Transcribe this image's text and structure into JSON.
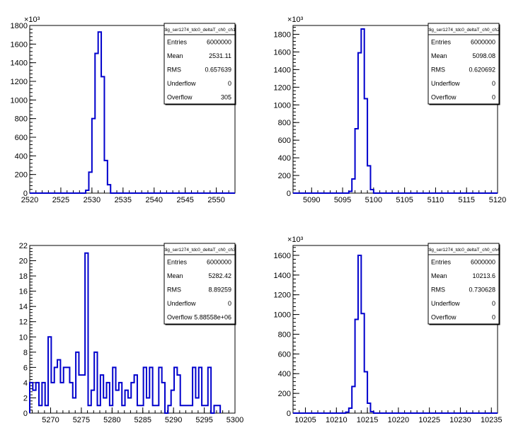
{
  "chart_data": [
    {
      "type": "histogram",
      "stats_title": "dig_ser1274_tdc0_deltaT_ch0_ch1",
      "stats": [
        {
          "label": "Entries",
          "value": "6000000"
        },
        {
          "label": "Mean",
          "value": "2531.11"
        },
        {
          "label": "RMS",
          "value": "0.657639"
        },
        {
          "label": "Underflow",
          "value": "0"
        },
        {
          "label": "Overflow",
          "value": "305"
        }
      ],
      "xlim": [
        2520,
        2553
      ],
      "ylim": [
        0,
        1800
      ],
      "y_multiplier": "×10³",
      "x_ticks": [
        {
          "v": 2520,
          "label": "2520"
        },
        {
          "v": 2525,
          "label": "2525"
        },
        {
          "v": 2530,
          "label": "2530"
        },
        {
          "v": 2535,
          "label": "2535"
        },
        {
          "v": 2540,
          "label": "2540"
        },
        {
          "v": 2545,
          "label": "2545"
        },
        {
          "v": 2550,
          "label": "2550"
        }
      ],
      "y_ticks": [
        {
          "v": 0,
          "label": "0"
        },
        {
          "v": 200,
          "label": "200"
        },
        {
          "v": 400,
          "label": "400"
        },
        {
          "v": 600,
          "label": "600"
        },
        {
          "v": 800,
          "label": "800"
        },
        {
          "v": 1000,
          "label": "1000"
        },
        {
          "v": 1200,
          "label": "1200"
        },
        {
          "v": 1400,
          "label": "1400"
        },
        {
          "v": 1600,
          "label": "1600"
        },
        {
          "v": 1800,
          "label": "1800"
        }
      ],
      "bin_edges": [
        2528.5,
        2529.0,
        2529.5,
        2530.0,
        2530.5,
        2531.0,
        2531.5,
        2532.0,
        2532.5,
        2533.0
      ],
      "values": [
        0,
        30,
        225,
        800,
        1500,
        1730,
        1250,
        350,
        90
      ]
    },
    {
      "type": "histogram",
      "stats_title": "dig_ser1274_tdc0_deltaT_ch0_ch2",
      "stats": [
        {
          "label": "Entries",
          "value": "6000000"
        },
        {
          "label": "Mean",
          "value": "5098.08"
        },
        {
          "label": "RMS",
          "value": "0.620692"
        },
        {
          "label": "Underflow",
          "value": "0"
        },
        {
          "label": "Overflow",
          "value": "0"
        }
      ],
      "xlim": [
        5087,
        5120
      ],
      "ylim": [
        0,
        1900
      ],
      "y_multiplier": "×10³",
      "x_ticks": [
        {
          "v": 5090,
          "label": "5090"
        },
        {
          "v": 5095,
          "label": "5095"
        },
        {
          "v": 5100,
          "label": "5100"
        },
        {
          "v": 5105,
          "label": "5105"
        },
        {
          "v": 5110,
          "label": "5110"
        },
        {
          "v": 5115,
          "label": "5115"
        },
        {
          "v": 5120,
          "label": "5120"
        }
      ],
      "y_ticks": [
        {
          "v": 0,
          "label": "0"
        },
        {
          "v": 200,
          "label": "200"
        },
        {
          "v": 400,
          "label": "400"
        },
        {
          "v": 600,
          "label": "600"
        },
        {
          "v": 800,
          "label": "800"
        },
        {
          "v": 1000,
          "label": "1000"
        },
        {
          "v": 1200,
          "label": "1200"
        },
        {
          "v": 1400,
          "label": "1400"
        },
        {
          "v": 1600,
          "label": "1600"
        },
        {
          "v": 1800,
          "label": "1800"
        }
      ],
      "bin_edges": [
        5096.0,
        5096.5,
        5097.0,
        5097.5,
        5098.0,
        5098.5,
        5099.0,
        5099.5,
        5100.0
      ],
      "values": [
        20,
        160,
        730,
        1590,
        1860,
        1070,
        310,
        40
      ]
    },
    {
      "type": "histogram",
      "stats_title": "dig_ser1274_tdc0_deltaT_ch0_ch3",
      "stats": [
        {
          "label": "Entries",
          "value": "6000000"
        },
        {
          "label": "Mean",
          "value": "5282.42"
        },
        {
          "label": "RMS",
          "value": "8.89259"
        },
        {
          "label": "Underflow",
          "value": "0"
        },
        {
          "label": "Overflow",
          "value": "5.88558e+06"
        }
      ],
      "xlim": [
        5266.6,
        5300
      ],
      "ylim": [
        0,
        22
      ],
      "y_multiplier": "",
      "x_ticks": [
        {
          "v": 5270,
          "label": "5270"
        },
        {
          "v": 5275,
          "label": "5275"
        },
        {
          "v": 5280,
          "label": "5280"
        },
        {
          "v": 5285,
          "label": "5285"
        },
        {
          "v": 5290,
          "label": "5290"
        },
        {
          "v": 5295,
          "label": "5295"
        },
        {
          "v": 5300,
          "label": "5300"
        }
      ],
      "y_ticks": [
        {
          "v": 0,
          "label": "0"
        },
        {
          "v": 2,
          "label": "2"
        },
        {
          "v": 4,
          "label": "4"
        },
        {
          "v": 6,
          "label": "6"
        },
        {
          "v": 8,
          "label": "8"
        },
        {
          "v": 10,
          "label": "10"
        },
        {
          "v": 12,
          "label": "12"
        },
        {
          "v": 14,
          "label": "14"
        },
        {
          "v": 16,
          "label": "16"
        },
        {
          "v": 18,
          "label": "18"
        },
        {
          "v": 20,
          "label": "20"
        },
        {
          "v": 22,
          "label": "22"
        }
      ],
      "bin_start": 5266.6,
      "bin_width": 0.5,
      "values": [
        4,
        3,
        4,
        1,
        4,
        1,
        10,
        4,
        6,
        7,
        4,
        6,
        6,
        4,
        2,
        8,
        5,
        5,
        21,
        1,
        3,
        8,
        1,
        5,
        2,
        4,
        1,
        6,
        3,
        4,
        1,
        3,
        2,
        4,
        5,
        1,
        1,
        6,
        2,
        6,
        1,
        1,
        6,
        4,
        0,
        1,
        3,
        6,
        5,
        1,
        1,
        1,
        1,
        6,
        2,
        6,
        1,
        1,
        6,
        0,
        1,
        1
      ]
    },
    {
      "type": "histogram",
      "stats_title": "dig_ser1274_tdc0_deltaT_ch0_ch4",
      "stats": [
        {
          "label": "Entries",
          "value": "6000000"
        },
        {
          "label": "Mean",
          "value": "10213.6"
        },
        {
          "label": "RMS",
          "value": "0.730628"
        },
        {
          "label": "Underflow",
          "value": "0"
        },
        {
          "label": "Overflow",
          "value": "0"
        }
      ],
      "xlim": [
        10203,
        10236
      ],
      "ylim": [
        0,
        1700
      ],
      "y_multiplier": "×10³",
      "x_ticks": [
        {
          "v": 10205,
          "label": "10205"
        },
        {
          "v": 10210,
          "label": "10210"
        },
        {
          "v": 10215,
          "label": "10215"
        },
        {
          "v": 10220,
          "label": "10220"
        },
        {
          "v": 10225,
          "label": "10225"
        },
        {
          "v": 10230,
          "label": "10230"
        },
        {
          "v": 10235,
          "label": "10235"
        }
      ],
      "y_ticks": [
        {
          "v": 0,
          "label": "0"
        },
        {
          "v": 200,
          "label": "200"
        },
        {
          "v": 400,
          "label": "400"
        },
        {
          "v": 600,
          "label": "600"
        },
        {
          "v": 800,
          "label": "800"
        },
        {
          "v": 1000,
          "label": "1000"
        },
        {
          "v": 1200,
          "label": "1200"
        },
        {
          "v": 1400,
          "label": "1400"
        },
        {
          "v": 1600,
          "label": "1600"
        }
      ],
      "bin_edges": [
        10211.5,
        10212.0,
        10212.5,
        10213.0,
        10213.5,
        10214.0,
        10214.5,
        10215.0,
        10215.5,
        10216.0
      ],
      "values": [
        10,
        50,
        270,
        950,
        1600,
        1010,
        420,
        100,
        15
      ]
    }
  ]
}
